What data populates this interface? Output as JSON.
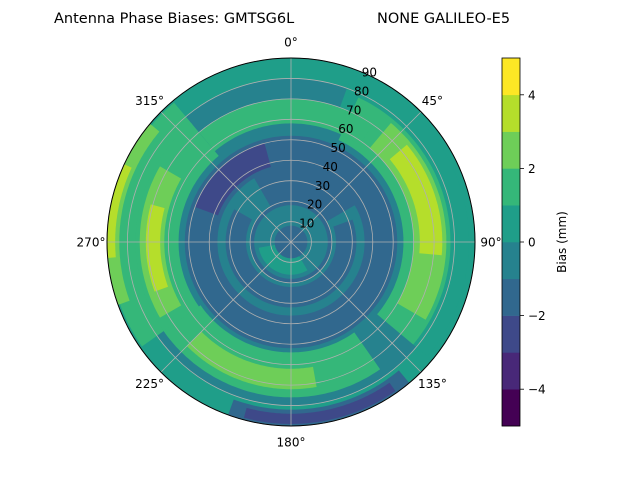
{
  "chart_data": {
    "type": "heatmap",
    "projection": "polar",
    "title": "Antenna Phase Biases: GMTSG6L",
    "subtitle": "NONE GALILEO-E5",
    "azimuth_ticks": [
      "0°",
      "45°",
      "90°",
      "135°",
      "180°",
      "225°",
      "270°",
      "315°"
    ],
    "radial_ticks": [
      "10",
      "20",
      "30",
      "40",
      "50",
      "60",
      "70",
      "80",
      "90"
    ],
    "radial_range": [
      0,
      90
    ],
    "grid": true,
    "colorbar": {
      "label": "Bias (mm)",
      "ticks": [
        "−4",
        "−2",
        "0",
        "2",
        "4"
      ],
      "range": [
        -5,
        5
      ],
      "levels": [
        -5,
        -4,
        -3,
        -2,
        -1,
        0,
        1,
        2,
        3,
        4,
        5
      ],
      "colors": [
        "#440154",
        "#482878",
        "#3e4989",
        "#31688e",
        "#26828e",
        "#1f9e89",
        "#35b779",
        "#6ece58",
        "#b5de2b",
        "#fde725"
      ]
    },
    "contours": [
      {
        "level": 1,
        "min_zenith": 0,
        "max_zenith": 90,
        "from_az": 0,
        "to_az": 360,
        "color": "#26828e"
      },
      {
        "level": 2,
        "min_zenith": 80,
        "max_zenith": 90,
        "from_az": 0,
        "to_az": 360,
        "color": "#1f9e89"
      },
      {
        "level": 3,
        "min_zenith": 70,
        "max_zenith": 87,
        "from_az": 20,
        "to_az": 130,
        "color": "#1f9e89"
      },
      {
        "level": 4,
        "min_zenith": 75,
        "max_zenith": 89,
        "from_az": 235,
        "to_az": 320,
        "color": "#35b779"
      },
      {
        "level": 5,
        "min_zenith": 84,
        "max_zenith": 90,
        "from_az": 250,
        "to_az": 310,
        "color": "#6ece58"
      },
      {
        "level": 6,
        "min_zenith": 86,
        "max_zenith": 90,
        "from_az": 265,
        "to_az": 295,
        "color": "#b5de2b"
      },
      {
        "level": 7,
        "min_zenith": 55,
        "max_zenith": 78,
        "from_az": 25,
        "to_az": 130,
        "color": "#35b779"
      },
      {
        "level": 8,
        "min_zenith": 60,
        "max_zenith": 76,
        "from_az": 40,
        "to_az": 120,
        "color": "#6ece58"
      },
      {
        "level": 9,
        "min_zenith": 63,
        "max_zenith": 74,
        "from_az": 50,
        "to_az": 95,
        "color": "#b5de2b"
      },
      {
        "level": 10,
        "min_zenith": 55,
        "max_zenith": 76,
        "from_az": 225,
        "to_az": 320,
        "color": "#35b779"
      },
      {
        "level": 11,
        "min_zenith": 62,
        "max_zenith": 74,
        "from_az": 240,
        "to_az": 300,
        "color": "#6ece58"
      },
      {
        "level": 12,
        "min_zenith": 64,
        "max_zenith": 71,
        "from_az": 250,
        "to_az": 285,
        "color": "#b5de2b"
      },
      {
        "level": 13,
        "min_zenith": 54,
        "max_zenith": 76,
        "from_az": 145,
        "to_az": 235,
        "color": "#35b779"
      },
      {
        "level": 14,
        "min_zenith": 62,
        "max_zenith": 72,
        "from_az": 170,
        "to_az": 225,
        "color": "#6ece58"
      },
      {
        "level": 15,
        "min_zenith": 58,
        "max_zenith": 70,
        "from_az": 320,
        "to_az": 395,
        "color": "#35b779"
      },
      {
        "level": 16,
        "min_zenith": 82,
        "max_zenith": 90,
        "from_az": 140,
        "to_az": 200,
        "color": "#31688e"
      },
      {
        "level": 17,
        "min_zenith": 84,
        "max_zenith": 89,
        "from_az": 145,
        "to_az": 195,
        "color": "#3e4989"
      },
      {
        "level": 18,
        "min_zenith": 10,
        "max_zenith": 52,
        "from_az": 0,
        "to_az": 360,
        "color": "#31688e"
      },
      {
        "level": 19,
        "min_zenith": 38,
        "max_zenith": 50,
        "from_az": 290,
        "to_az": 345,
        "color": "#3e4989"
      },
      {
        "level": 20,
        "min_zenith": 20,
        "max_zenith": 36,
        "from_az": 60,
        "to_az": 330,
        "color": "#26828e"
      },
      {
        "level": 21,
        "min_zenith": 22,
        "max_zenith": 32,
        "from_az": 70,
        "to_az": 300,
        "color": "#31688e"
      },
      {
        "level": 22,
        "min_zenith": 0,
        "max_zenith": 18,
        "from_az": 0,
        "to_az": 360,
        "color": "#26828e"
      },
      {
        "level": 23,
        "min_zenith": 6,
        "max_zenith": 16,
        "from_az": 150,
        "to_az": 260,
        "color": "#1f9e89"
      },
      {
        "level": 24,
        "min_zenith": 0,
        "max_zenith": 8,
        "from_az": 0,
        "to_az": 360,
        "color": "#31688e"
      }
    ]
  }
}
